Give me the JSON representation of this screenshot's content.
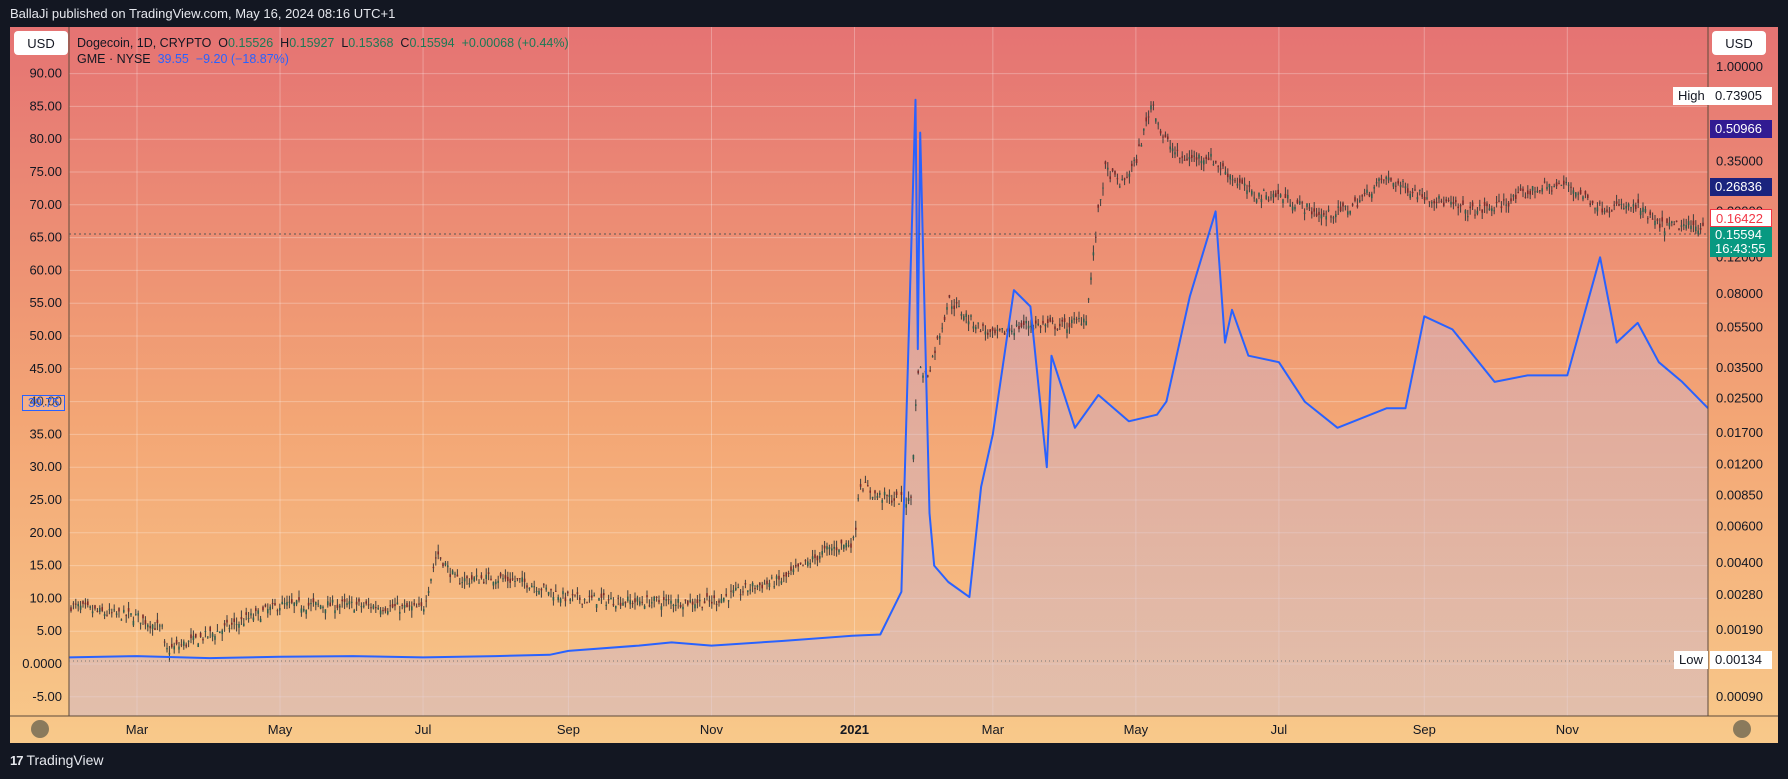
{
  "header": {
    "published": "BallaJi published on TradingView.com, May 16, 2024 08:16 UTC+1"
  },
  "footer": {
    "logo_text": "TradingView",
    "logo_mark": "17"
  },
  "currency_left": "USD",
  "currency_right": "USD",
  "legend": {
    "symbol1": "Dogecoin, 1D, CRYPTO",
    "o_label": "O",
    "o_value": "0.15526",
    "h_label": "H",
    "h_value": "0.15927",
    "l_label": "L",
    "l_value": "0.15368",
    "c_label": "C",
    "c_value": "0.15594",
    "change": "+0.00068 (+0.44%)",
    "symbol2": "GME · NYSE",
    "gme_price": "39.55",
    "gme_change": "−9.20 (−18.87%)"
  },
  "left_axis_marker": "39.75",
  "right_labels": {
    "high_tag": "High",
    "high_value": "0.73905",
    "low_tag": "Low",
    "low_value": "0.00134",
    "mark_1": "0.50966",
    "mark_2": "0.26836",
    "mark_3": "0.16422",
    "current_price": "0.15594",
    "countdown": "16:43:55"
  },
  "colors": {
    "bg_top": "#e57373",
    "bg_bottom": "#f8c98a",
    "gme_line": "#2962ff",
    "candle": "#3d3d3d",
    "price_tag": "#089981",
    "mark_dark": "#311b92",
    "mark_navy": "#1a237e",
    "mark_red": "#f23645"
  },
  "chart_data": {
    "type": "line",
    "left_axis": {
      "ticks": [
        "90.00",
        "85.00",
        "80.00",
        "75.00",
        "70.00",
        "65.00",
        "60.00",
        "55.00",
        "50.00",
        "45.00",
        "40.00",
        "35.00",
        "30.00",
        "25.00",
        "20.00",
        "15.00",
        "10.00",
        "5.00",
        "0.0000",
        "-5.00"
      ],
      "ylim": [
        -8,
        94
      ]
    },
    "right_axis": {
      "scale": "log",
      "ticks": [
        "1.00000",
        "0.50000",
        "0.35000",
        "0.20000",
        "0.12000",
        "0.08000",
        "0.05500",
        "0.03500",
        "0.02500",
        "0.01700",
        "0.01200",
        "0.00850",
        "0.00600",
        "0.00400",
        "0.00280",
        "0.00190",
        "0.00090"
      ]
    },
    "x_ticks": [
      "Mar",
      "May",
      "Jul",
      "Sep",
      "Nov",
      "2021",
      "Mar",
      "May",
      "Jul",
      "Sep",
      "Nov"
    ],
    "series": [
      {
        "name": "GME · NYSE",
        "axis": "left",
        "x": [
          "2020-02-01",
          "2020-03-01",
          "2020-04-01",
          "2020-05-01",
          "2020-06-01",
          "2020-07-01",
          "2020-08-01",
          "2020-08-24",
          "2020-09-01",
          "2020-10-01",
          "2020-10-15",
          "2020-11-01",
          "2020-12-01",
          "2020-12-31",
          "2021-01-12",
          "2021-01-21",
          "2021-01-27",
          "2021-01-28",
          "2021-01-29",
          "2021-02-02",
          "2021-02-04",
          "2021-02-10",
          "2021-02-19",
          "2021-02-24",
          "2021-03-01",
          "2021-03-10",
          "2021-03-17",
          "2021-03-24",
          "2021-03-26",
          "2021-04-05",
          "2021-04-15",
          "2021-04-28",
          "2021-05-10",
          "2021-05-14",
          "2021-05-24",
          "2021-06-04",
          "2021-06-08",
          "2021-06-11",
          "2021-06-18",
          "2021-07-01",
          "2021-07-12",
          "2021-07-26",
          "2021-08-16",
          "2021-08-24",
          "2021-09-01",
          "2021-09-13",
          "2021-10-01",
          "2021-10-15",
          "2021-11-01",
          "2021-11-15",
          "2021-11-22",
          "2021-12-01",
          "2021-12-10",
          "2021-12-20",
          "2021-12-31"
        ],
        "values": [
          1.0,
          1.2,
          0.9,
          1.1,
          1.2,
          1.0,
          1.2,
          1.4,
          2.0,
          2.8,
          3.3,
          2.8,
          3.5,
          4.3,
          4.5,
          11.0,
          86.0,
          48.0,
          81.0,
          23.0,
          15.0,
          12.5,
          10.2,
          27.0,
          35.0,
          57.0,
          54.5,
          30.0,
          47.0,
          36.0,
          41.0,
          37.0,
          38.0,
          40.0,
          56.0,
          69.0,
          49.0,
          54.0,
          47.0,
          46.0,
          40.0,
          36.0,
          39.0,
          39.0,
          53.0,
          51.0,
          43.0,
          44.0,
          44.0,
          62.0,
          49.0,
          52.0,
          46.0,
          43.0,
          39.0
        ]
      },
      {
        "name": "Dogecoin, 1D, CRYPTO",
        "axis": "right",
        "type": "candlestick",
        "x": [
          "2020-02-01",
          "2020-02-15",
          "2020-03-01",
          "2020-03-12",
          "2020-03-13",
          "2020-04-01",
          "2020-05-01",
          "2020-06-01",
          "2020-07-01",
          "2020-07-07",
          "2020-07-15",
          "2020-08-01",
          "2020-08-15",
          "2020-09-01",
          "2020-10-01",
          "2020-11-01",
          "2020-11-20",
          "2020-12-01",
          "2020-12-20",
          "2021-01-01",
          "2021-01-03",
          "2021-01-10",
          "2021-01-25",
          "2021-01-28",
          "2021-02-01",
          "2021-02-08",
          "2021-02-10",
          "2021-02-20",
          "2021-03-01",
          "2021-03-15",
          "2021-04-01",
          "2021-04-10",
          "2021-04-15",
          "2021-04-18",
          "2021-04-25",
          "2021-05-01",
          "2021-05-08",
          "2021-05-12",
          "2021-05-20",
          "2021-06-01",
          "2021-06-20",
          "2021-07-01",
          "2021-07-20",
          "2021-08-01",
          "2021-08-15",
          "2021-09-01",
          "2021-09-20",
          "2021-10-01",
          "2021-10-20",
          "2021-11-01",
          "2021-11-15",
          "2021-12-01",
          "2021-12-10",
          "2021-12-31"
        ],
        "values": [
          0.0025,
          0.0023,
          0.0022,
          0.0019,
          0.0015,
          0.0018,
          0.0025,
          0.0025,
          0.0024,
          0.0045,
          0.0033,
          0.0034,
          0.0032,
          0.0027,
          0.0026,
          0.0026,
          0.0031,
          0.0033,
          0.0046,
          0.0051,
          0.0098,
          0.0085,
          0.0079,
          0.035,
          0.032,
          0.06,
          0.075,
          0.059,
          0.05,
          0.057,
          0.056,
          0.062,
          0.2,
          0.32,
          0.27,
          0.35,
          0.69,
          0.47,
          0.36,
          0.37,
          0.24,
          0.24,
          0.19,
          0.21,
          0.29,
          0.24,
          0.2,
          0.21,
          0.26,
          0.27,
          0.21,
          0.21,
          0.17,
          0.17
        ]
      }
    ]
  }
}
